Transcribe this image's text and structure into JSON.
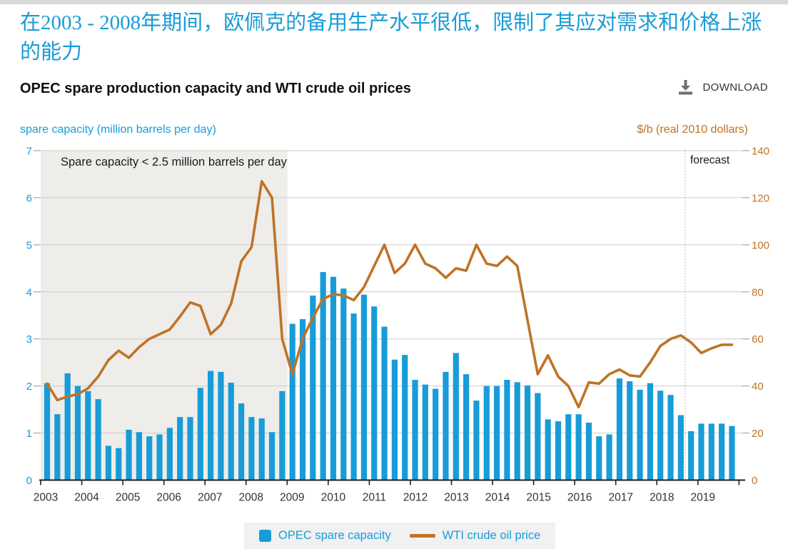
{
  "page": {
    "headline": "在2003 - 2008年期间，欧佩克的备用生产水平很低，限制了其应对需求和价格上涨的能力",
    "chart_title": "OPEC spare production capacity and WTI crude oil prices",
    "download_label": "DOWNLOAD",
    "left_axis_title": "spare capacity (million barrels per day)",
    "right_axis_title": "$/b (real 2010 dollars)",
    "annotation": "Spare capacity < 2.5 million barrels per day",
    "forecast_label": "forecast",
    "legend": {
      "bars": "OPEC spare capacity",
      "line": "WTI crude oil price"
    }
  },
  "colors": {
    "blue": "#189cd8",
    "brown": "#bf7327",
    "gridline": "#cccccc",
    "shaded_band": "#eeedea",
    "legend_background": "#f1f1f1",
    "axis_line": "#222222",
    "tick_gray": "#b3b3b3",
    "text_dark": "#1a1a1a",
    "download_icon_gray": "#707070"
  },
  "chart_data": {
    "type": "bar+line dual-axis",
    "title": "OPEC spare production capacity and WTI crude oil prices",
    "x_frequency": "quarterly",
    "quarters": [
      "2003Q1",
      "2003Q2",
      "2003Q3",
      "2003Q4",
      "2004Q1",
      "2004Q2",
      "2004Q3",
      "2004Q4",
      "2005Q1",
      "2005Q2",
      "2005Q3",
      "2005Q4",
      "2006Q1",
      "2006Q2",
      "2006Q3",
      "2006Q4",
      "2007Q1",
      "2007Q2",
      "2007Q3",
      "2007Q4",
      "2008Q1",
      "2008Q2",
      "2008Q3",
      "2008Q4",
      "2009Q1",
      "2009Q2",
      "2009Q3",
      "2009Q4",
      "2010Q1",
      "2010Q2",
      "2010Q3",
      "2010Q4",
      "2011Q1",
      "2011Q2",
      "2011Q3",
      "2011Q4",
      "2012Q1",
      "2012Q2",
      "2012Q3",
      "2012Q4",
      "2013Q1",
      "2013Q2",
      "2013Q3",
      "2013Q4",
      "2014Q1",
      "2014Q2",
      "2014Q3",
      "2014Q4",
      "2015Q1",
      "2015Q2",
      "2015Q3",
      "2015Q4",
      "2016Q1",
      "2016Q2",
      "2016Q3",
      "2016Q4",
      "2017Q1",
      "2017Q2",
      "2017Q3",
      "2017Q4",
      "2018Q1",
      "2018Q2",
      "2018Q3",
      "2018Q4",
      "2019Q1",
      "2019Q2",
      "2019Q3",
      "2019Q4"
    ],
    "year_tick_labels": [
      "2003",
      "2004",
      "2005",
      "2006",
      "2007",
      "2008",
      "2009",
      "2010",
      "2011",
      "2012",
      "2013",
      "2014",
      "2015",
      "2016",
      "2017",
      "2018",
      "2019"
    ],
    "left_axis": {
      "title": "spare capacity (million barrels per day)",
      "min": 0,
      "max": 7,
      "tick_step": 1
    },
    "right_axis": {
      "title": "$/b (real 2010 dollars)",
      "min": 0,
      "max": 140,
      "tick_step": 20
    },
    "series": [
      {
        "name": "OPEC spare capacity",
        "type": "bar",
        "axis": "left",
        "values": [
          2.06,
          1.4,
          2.27,
          2.0,
          1.89,
          1.72,
          0.73,
          0.68,
          1.07,
          1.02,
          0.93,
          0.97,
          1.11,
          1.34,
          1.34,
          1.96,
          2.32,
          2.3,
          2.07,
          1.63,
          1.34,
          1.31,
          1.02,
          1.89,
          3.32,
          3.42,
          3.92,
          4.42,
          4.32,
          4.07,
          3.54,
          3.94,
          3.69,
          3.26,
          2.56,
          2.66,
          2.13,
          2.03,
          1.94,
          2.3,
          2.7,
          2.25,
          1.69,
          2.0,
          2.0,
          2.13,
          2.08,
          2.01,
          1.85,
          1.29,
          1.25,
          1.4,
          1.4,
          1.22,
          0.93,
          0.97,
          2.16,
          2.1,
          1.92,
          2.06,
          1.9,
          1.81,
          1.38,
          1.04,
          1.2,
          1.2,
          1.2,
          1.15
        ]
      },
      {
        "name": "WTI crude oil price",
        "type": "line",
        "axis": "right",
        "values": [
          41,
          34,
          35.5,
          36.5,
          39,
          44,
          51,
          55,
          52,
          56.5,
          60,
          62,
          64,
          69.5,
          75.5,
          74,
          62,
          66,
          75,
          93,
          99,
          127,
          120,
          60,
          45,
          60,
          69,
          77,
          79,
          78.5,
          76.5,
          82,
          91,
          100,
          88,
          92,
          100,
          92,
          90,
          86,
          90,
          89,
          100,
          92,
          91,
          95,
          91,
          68,
          45,
          53,
          44,
          40,
          31,
          41.5,
          41,
          45,
          47,
          44.5,
          44,
          50,
          57,
          60,
          61.5,
          58.5,
          54,
          56,
          57.5,
          57.5
        ]
      }
    ],
    "shaded_region": {
      "from": "2003Q1",
      "to": "2008Q4",
      "label": "Spare capacity < 2.5 million barrels per day"
    },
    "forecast": {
      "starts_at": "2018Q4",
      "label": "forecast"
    },
    "grid": true,
    "legend_position": "bottom-center"
  }
}
